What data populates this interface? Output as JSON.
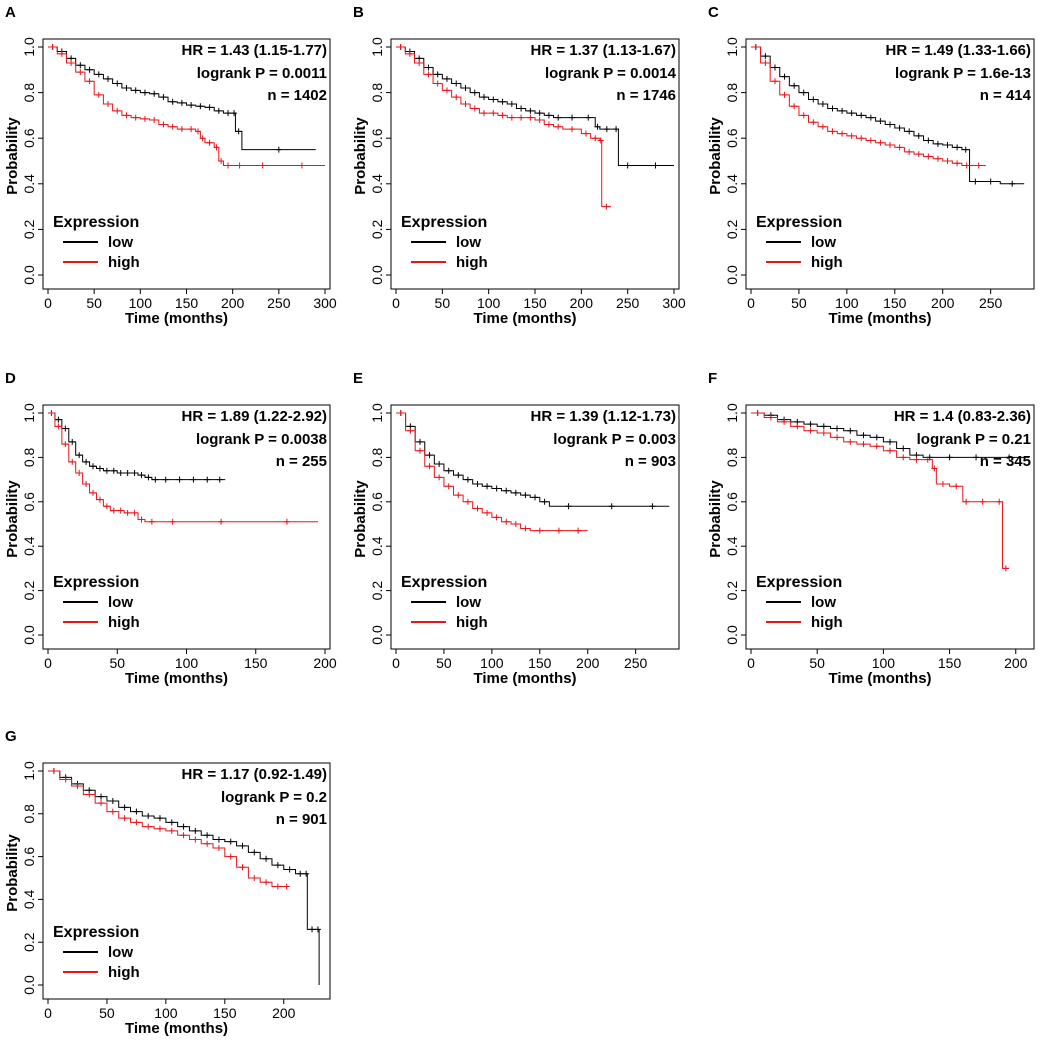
{
  "chart_data": [
    {
      "type": "line",
      "label": "A",
      "title": "",
      "xlabel": "Time (months)",
      "ylabel": "Probability",
      "xlim": [
        0,
        300
      ],
      "ylim": [
        0,
        1
      ],
      "xticks": [
        "0",
        "50",
        "100",
        "150",
        "200",
        "250",
        "300"
      ],
      "yticks": [
        "0.0",
        "0.2",
        "0.4",
        "0.6",
        "0.8",
        "1.0"
      ],
      "legend": {
        "title": "Expression",
        "entries": [
          "low",
          "high"
        ],
        "position": "bottom-left"
      },
      "stats": {
        "hr": "HR = 1.43 (1.15-1.77)",
        "p": "logrank P = 0.0011",
        "n": "n = 1402"
      },
      "series": [
        {
          "name": "low",
          "color": "#000000",
          "x": [
            0,
            10,
            20,
            30,
            40,
            50,
            60,
            70,
            80,
            90,
            100,
            110,
            120,
            130,
            140,
            150,
            160,
            170,
            180,
            190,
            200,
            203,
            210,
            290
          ],
          "y": [
            1,
            0.98,
            0.95,
            0.92,
            0.9,
            0.88,
            0.86,
            0.84,
            0.82,
            0.81,
            0.8,
            0.795,
            0.78,
            0.76,
            0.755,
            0.745,
            0.74,
            0.735,
            0.72,
            0.71,
            0.71,
            0.63,
            0.55,
            0.55
          ]
        },
        {
          "name": "high",
          "color": "#e8141a",
          "x": [
            0,
            10,
            20,
            30,
            40,
            50,
            60,
            70,
            80,
            90,
            100,
            110,
            120,
            130,
            140,
            150,
            160,
            165,
            170,
            180,
            185,
            190,
            200,
            215,
            250,
            300
          ],
          "y": [
            1,
            0.97,
            0.93,
            0.89,
            0.85,
            0.79,
            0.75,
            0.72,
            0.7,
            0.69,
            0.685,
            0.68,
            0.66,
            0.65,
            0.64,
            0.64,
            0.63,
            0.6,
            0.58,
            0.56,
            0.5,
            0.48,
            0.48,
            0.48,
            0.48,
            0.48
          ]
        }
      ]
    },
    {
      "type": "line",
      "label": "B",
      "title": "",
      "xlabel": "Time (months)",
      "ylabel": "Probability",
      "xlim": [
        0,
        300
      ],
      "ylim": [
        0,
        1
      ],
      "xticks": [
        "0",
        "50",
        "100",
        "150",
        "200",
        "250",
        "300"
      ],
      "yticks": [
        "0.0",
        "0.2",
        "0.4",
        "0.6",
        "0.8",
        "1.0"
      ],
      "legend": {
        "title": "Expression",
        "entries": [
          "low",
          "high"
        ],
        "position": "bottom-left"
      },
      "stats": {
        "hr": "HR = 1.37 (1.13-1.67)",
        "p": "logrank P = 0.0014",
        "n": "n = 1746"
      },
      "series": [
        {
          "name": "low",
          "color": "#000000",
          "x": [
            0,
            10,
            20,
            30,
            40,
            50,
            60,
            70,
            80,
            90,
            100,
            110,
            120,
            130,
            140,
            150,
            160,
            170,
            180,
            200,
            215,
            220,
            235,
            240,
            260,
            300
          ],
          "y": [
            1,
            0.98,
            0.95,
            0.91,
            0.88,
            0.86,
            0.84,
            0.82,
            0.8,
            0.78,
            0.77,
            0.76,
            0.75,
            0.73,
            0.72,
            0.71,
            0.7,
            0.69,
            0.69,
            0.69,
            0.65,
            0.64,
            0.64,
            0.48,
            0.48,
            0.48
          ]
        },
        {
          "name": "high",
          "color": "#e8141a",
          "x": [
            0,
            10,
            20,
            30,
            40,
            50,
            60,
            70,
            80,
            90,
            100,
            110,
            120,
            130,
            140,
            150,
            160,
            170,
            180,
            200,
            210,
            220,
            222,
            232
          ],
          "y": [
            1,
            0.97,
            0.93,
            0.88,
            0.84,
            0.81,
            0.78,
            0.75,
            0.73,
            0.71,
            0.71,
            0.7,
            0.69,
            0.69,
            0.69,
            0.68,
            0.66,
            0.65,
            0.64,
            0.62,
            0.6,
            0.59,
            0.3,
            0.3
          ]
        }
      ]
    },
    {
      "type": "line",
      "label": "C",
      "title": "",
      "xlabel": "Time (months)",
      "ylabel": "Probability",
      "xlim": [
        0,
        290
      ],
      "ylim": [
        0,
        1
      ],
      "xticks": [
        "0",
        "50",
        "100",
        "150",
        "200",
        "250"
      ],
      "yticks": [
        "0.0",
        "0.2",
        "0.4",
        "0.6",
        "0.8",
        "1.0"
      ],
      "legend": {
        "title": "Expression",
        "entries": [
          "low",
          "high"
        ],
        "position": "bottom-left"
      },
      "stats": {
        "hr": "HR = 1.49 (1.33-1.66)",
        "p": "logrank P = 1.6e-13",
        "n": "n = 414"
      },
      "series": [
        {
          "name": "low",
          "color": "#000000",
          "x": [
            0,
            10,
            20,
            30,
            40,
            50,
            60,
            70,
            80,
            90,
            100,
            110,
            120,
            130,
            140,
            150,
            160,
            170,
            180,
            190,
            200,
            210,
            220,
            228,
            240,
            260,
            285
          ],
          "y": [
            1,
            0.96,
            0.91,
            0.87,
            0.83,
            0.8,
            0.77,
            0.75,
            0.73,
            0.72,
            0.71,
            0.7,
            0.69,
            0.675,
            0.66,
            0.645,
            0.63,
            0.61,
            0.59,
            0.575,
            0.57,
            0.56,
            0.55,
            0.41,
            0.41,
            0.4,
            0.4
          ]
        },
        {
          "name": "high",
          "color": "#e8141a",
          "x": [
            0,
            10,
            20,
            30,
            40,
            50,
            60,
            70,
            80,
            90,
            100,
            110,
            120,
            130,
            140,
            150,
            160,
            170,
            180,
            190,
            200,
            210,
            220,
            230,
            245
          ],
          "y": [
            1,
            0.93,
            0.85,
            0.79,
            0.74,
            0.7,
            0.67,
            0.65,
            0.63,
            0.62,
            0.61,
            0.6,
            0.59,
            0.58,
            0.57,
            0.56,
            0.54,
            0.53,
            0.52,
            0.51,
            0.5,
            0.49,
            0.48,
            0.48,
            0.48
          ]
        }
      ]
    },
    {
      "type": "line",
      "label": "D",
      "title": "",
      "xlabel": "Time (months)",
      "ylabel": "Probability",
      "xlim": [
        0,
        200
      ],
      "ylim": [
        0,
        1
      ],
      "xticks": [
        "0",
        "50",
        "100",
        "150",
        "200"
      ],
      "yticks": [
        "0.0",
        "0.2",
        "0.4",
        "0.6",
        "0.8",
        "1.0"
      ],
      "legend": {
        "title": "Expression",
        "entries": [
          "low",
          "high"
        ],
        "position": "bottom-left"
      },
      "stats": {
        "hr": "HR = 1.89 (1.22-2.92)",
        "p": "logrank P = 0.0038",
        "n": "n = 255"
      },
      "series": [
        {
          "name": "low",
          "color": "#000000",
          "x": [
            0,
            5,
            10,
            15,
            20,
            25,
            30,
            35,
            40,
            45,
            50,
            55,
            60,
            65,
            70,
            75,
            80,
            90,
            100,
            110,
            120,
            128
          ],
          "y": [
            1,
            0.97,
            0.93,
            0.87,
            0.81,
            0.78,
            0.76,
            0.75,
            0.74,
            0.74,
            0.73,
            0.73,
            0.73,
            0.72,
            0.71,
            0.7,
            0.7,
            0.7,
            0.7,
            0.7,
            0.7,
            0.7
          ]
        },
        {
          "name": "high",
          "color": "#e8141a",
          "x": [
            0,
            5,
            10,
            15,
            20,
            25,
            30,
            35,
            40,
            45,
            50,
            55,
            60,
            65,
            70,
            80,
            100,
            150,
            195
          ],
          "y": [
            1,
            0.94,
            0.86,
            0.78,
            0.73,
            0.68,
            0.64,
            0.61,
            0.58,
            0.56,
            0.56,
            0.55,
            0.55,
            0.52,
            0.51,
            0.51,
            0.51,
            0.51,
            0.51
          ]
        }
      ]
    },
    {
      "type": "line",
      "label": "E",
      "title": "",
      "xlabel": "Time (months)",
      "ylabel": "Probability",
      "xlim": [
        0,
        290
      ],
      "ylim": [
        0,
        1
      ],
      "xticks": [
        "0",
        "50",
        "100",
        "150",
        "200",
        "250"
      ],
      "yticks": [
        "0.0",
        "0.2",
        "0.4",
        "0.6",
        "0.8",
        "1.0"
      ],
      "legend": {
        "title": "Expression",
        "entries": [
          "low",
          "high"
        ],
        "position": "bottom-left"
      },
      "stats": {
        "hr": "HR = 1.39 (1.12-1.73)",
        "p": "logrank P = 0.003",
        "n": "n = 903"
      },
      "series": [
        {
          "name": "low",
          "color": "#000000",
          "x": [
            0,
            10,
            20,
            30,
            40,
            50,
            60,
            70,
            80,
            90,
            100,
            110,
            120,
            130,
            140,
            150,
            160,
            200,
            250,
            285
          ],
          "y": [
            1,
            0.94,
            0.87,
            0.81,
            0.77,
            0.74,
            0.72,
            0.7,
            0.68,
            0.67,
            0.66,
            0.65,
            0.64,
            0.63,
            0.62,
            0.6,
            0.58,
            0.58,
            0.58,
            0.58
          ]
        },
        {
          "name": "high",
          "color": "#e8141a",
          "x": [
            0,
            10,
            20,
            30,
            40,
            50,
            60,
            70,
            80,
            90,
            100,
            110,
            120,
            130,
            140,
            160,
            180,
            200
          ],
          "y": [
            1,
            0.92,
            0.83,
            0.76,
            0.71,
            0.67,
            0.63,
            0.6,
            0.57,
            0.55,
            0.53,
            0.51,
            0.5,
            0.48,
            0.47,
            0.47,
            0.47,
            0.47
          ]
        }
      ]
    },
    {
      "type": "line",
      "label": "F",
      "title": "",
      "xlabel": "Time (months)",
      "ylabel": "Probability",
      "xlim": [
        0,
        210
      ],
      "ylim": [
        0,
        1
      ],
      "xticks": [
        "0",
        "50",
        "100",
        "150",
        "200"
      ],
      "yticks": [
        "0.0",
        "0.2",
        "0.4",
        "0.6",
        "0.8",
        "1.0"
      ],
      "legend": {
        "title": "Expression",
        "entries": [
          "low",
          "high"
        ],
        "position": "bottom-left"
      },
      "stats": {
        "hr": "HR = 1.4 (0.83-2.36)",
        "p": "logrank P = 0.21",
        "n": "n = 345"
      },
      "series": [
        {
          "name": "low",
          "color": "#000000",
          "x": [
            0,
            10,
            20,
            30,
            40,
            50,
            60,
            70,
            80,
            90,
            100,
            110,
            120,
            130,
            140,
            160,
            180,
            210
          ],
          "y": [
            1,
            0.99,
            0.97,
            0.96,
            0.95,
            0.94,
            0.93,
            0.92,
            0.9,
            0.89,
            0.87,
            0.84,
            0.81,
            0.8,
            0.8,
            0.8,
            0.8,
            0.8
          ]
        },
        {
          "name": "high",
          "color": "#e8141a",
          "x": [
            0,
            10,
            20,
            30,
            40,
            50,
            60,
            70,
            80,
            90,
            100,
            110,
            120,
            130,
            137,
            140,
            150,
            160,
            165,
            185,
            190,
            195
          ],
          "y": [
            1,
            0.98,
            0.96,
            0.94,
            0.92,
            0.91,
            0.89,
            0.87,
            0.86,
            0.85,
            0.83,
            0.8,
            0.79,
            0.79,
            0.75,
            0.68,
            0.67,
            0.6,
            0.6,
            0.6,
            0.3,
            0.3
          ]
        }
      ]
    },
    {
      "type": "line",
      "label": "G",
      "title": "",
      "xlabel": "Time (months)",
      "ylabel": "Probability",
      "xlim": [
        0,
        235
      ],
      "ylim": [
        0,
        1
      ],
      "xticks": [
        "0",
        "50",
        "100",
        "150",
        "200"
      ],
      "yticks": [
        "0.0",
        "0.2",
        "0.4",
        "0.6",
        "0.8",
        "1.0"
      ],
      "legend": {
        "title": "Expression",
        "entries": [
          "low",
          "high"
        ],
        "position": "bottom-left"
      },
      "stats": {
        "hr": "HR = 1.17 (0.92-1.49)",
        "p": "logrank P = 0.2",
        "n": "n = 901"
      },
      "series": [
        {
          "name": "low",
          "color": "#000000",
          "x": [
            0,
            10,
            20,
            30,
            40,
            50,
            60,
            70,
            80,
            90,
            100,
            110,
            120,
            130,
            140,
            150,
            160,
            170,
            180,
            190,
            200,
            210,
            218,
            220,
            228,
            230
          ],
          "y": [
            1,
            0.97,
            0.94,
            0.91,
            0.88,
            0.86,
            0.83,
            0.81,
            0.79,
            0.78,
            0.76,
            0.74,
            0.72,
            0.7,
            0.68,
            0.67,
            0.65,
            0.62,
            0.59,
            0.56,
            0.54,
            0.52,
            0.52,
            0.26,
            0.26,
            0
          ]
        },
        {
          "name": "high",
          "color": "#e8141a",
          "x": [
            0,
            10,
            20,
            30,
            40,
            50,
            60,
            70,
            80,
            90,
            100,
            110,
            120,
            130,
            140,
            150,
            160,
            170,
            180,
            190,
            200,
            205
          ],
          "y": [
            1,
            0.96,
            0.93,
            0.89,
            0.85,
            0.81,
            0.78,
            0.76,
            0.74,
            0.73,
            0.72,
            0.7,
            0.68,
            0.66,
            0.64,
            0.6,
            0.55,
            0.5,
            0.48,
            0.46,
            0.46,
            0.46
          ]
        }
      ]
    }
  ]
}
